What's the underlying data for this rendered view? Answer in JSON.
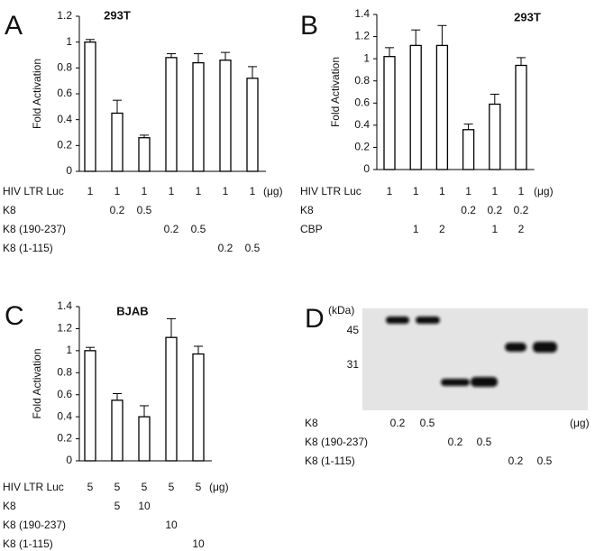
{
  "chart_data": [
    {
      "type": "bar",
      "panel": "A",
      "title": "293T",
      "y_label": "Fold Activation",
      "color": "#ffffff",
      "ylim": [
        0,
        1.2
      ],
      "yticks": [
        0,
        0.2,
        0.4,
        0.6,
        0.8,
        1,
        1.2
      ],
      "values": [
        1.0,
        0.45,
        0.26,
        0.88,
        0.84,
        0.86,
        0.72
      ],
      "errors": [
        0.02,
        0.1,
        0.02,
        0.03,
        0.07,
        0.06,
        0.09
      ],
      "conditions": [
        {
          "label": "HIV LTR Luc",
          "values": [
            1,
            1,
            1,
            1,
            1,
            1,
            1
          ]
        },
        {
          "label": "K8",
          "values": [
            null,
            0.2,
            0.5,
            null,
            null,
            null,
            null
          ]
        },
        {
          "label": "K8 (190-237)",
          "values": [
            null,
            null,
            null,
            0.2,
            0.5,
            null,
            null
          ]
        },
        {
          "label": "K8 (1-115)",
          "values": [
            null,
            null,
            null,
            null,
            null,
            0.2,
            0.5
          ]
        }
      ],
      "unit": "(μg)"
    },
    {
      "type": "bar",
      "panel": "B",
      "title": "293T",
      "y_label": "Fold Activation",
      "color": "#ffffff",
      "ylim": [
        0,
        1.4
      ],
      "yticks": [
        0,
        0.2,
        0.4,
        0.6,
        0.8,
        1,
        1.2,
        1.4
      ],
      "values": [
        1.02,
        1.12,
        1.12,
        0.36,
        0.59,
        0.94
      ],
      "errors": [
        0.08,
        0.14,
        0.18,
        0.05,
        0.09,
        0.07
      ],
      "conditions": [
        {
          "label": "HIV LTR Luc",
          "values": [
            1,
            1,
            1,
            1,
            1,
            1
          ]
        },
        {
          "label": "K8",
          "values": [
            null,
            null,
            null,
            0.2,
            0.2,
            0.2
          ]
        },
        {
          "label": "CBP",
          "values": [
            null,
            1,
            2,
            null,
            1,
            2
          ]
        }
      ],
      "unit": "(μg)"
    },
    {
      "type": "bar",
      "panel": "C",
      "title": "BJAB",
      "y_label": "Fold Activation",
      "color": "#ffffff",
      "ylim": [
        0,
        1.4
      ],
      "yticks": [
        0,
        0.2,
        0.4,
        0.6,
        0.8,
        1,
        1.2,
        1.4
      ],
      "values": [
        1.0,
        0.55,
        0.4,
        1.12,
        0.97
      ],
      "errors": [
        0.03,
        0.06,
        0.1,
        0.17,
        0.07
      ],
      "conditions": [
        {
          "label": "HIV LTR Luc",
          "values": [
            5,
            5,
            5,
            5,
            5
          ]
        },
        {
          "label": "K8",
          "values": [
            null,
            5,
            10,
            null,
            null
          ]
        },
        {
          "label": "K8 (190-237)",
          "values": [
            null,
            null,
            null,
            10,
            null
          ]
        },
        {
          "label": "K8 (1-115)",
          "values": [
            null,
            null,
            null,
            null,
            10
          ]
        }
      ],
      "unit": "(μg)"
    }
  ],
  "blot": {
    "panel": "D",
    "marker_unit": "(kDa)",
    "markers": [
      45,
      31
    ],
    "conditions": [
      {
        "label": "K8",
        "values": [
          0.2,
          0.5,
          null,
          null,
          null,
          null
        ]
      },
      {
        "label": "K8 (190-237)",
        "values": [
          null,
          null,
          0.2,
          0.5,
          null,
          null
        ]
      },
      {
        "label": "K8 (1-115)",
        "values": [
          null,
          null,
          null,
          null,
          0.2,
          0.5
        ]
      }
    ],
    "unit": "(μg)"
  }
}
